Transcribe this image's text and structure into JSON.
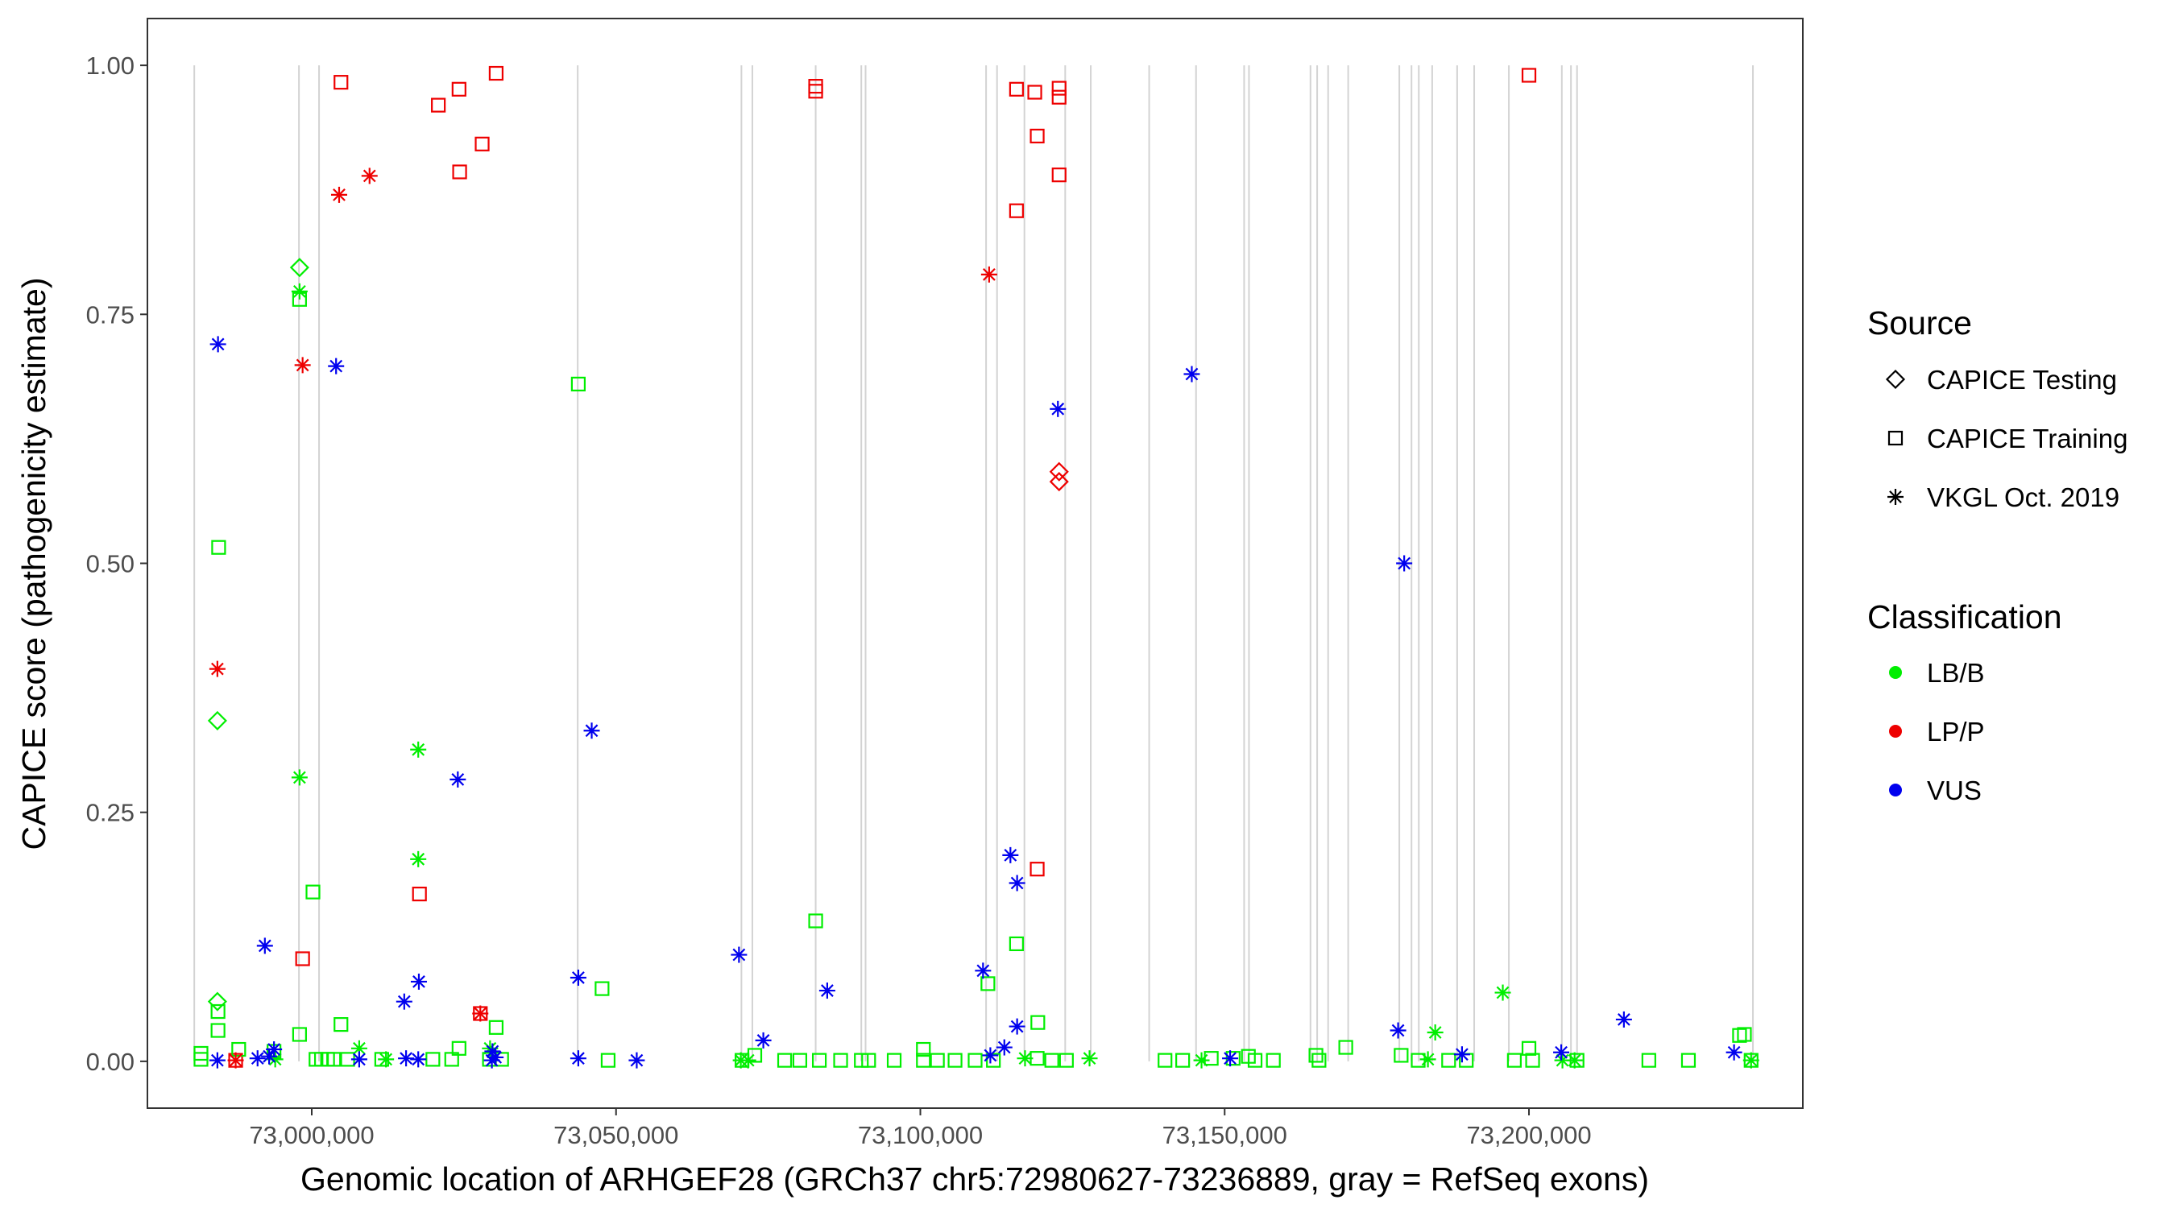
{
  "chart_data": {
    "type": "scatter",
    "xlabel": "Genomic location of ARHGEF28 (GRCh37 chr5:72980627-73236889, gray = RefSeq exons)",
    "ylabel": "CAPICE score (pathogenicity estimate)",
    "xlim": [
      72973000,
      73245000
    ],
    "ylim": [
      -0.047,
      1.047
    ],
    "x_ticks": [
      73000000,
      73050000,
      73100000,
      73150000,
      73200000
    ],
    "x_tick_labels": [
      "73,000,000",
      "73,050,000",
      "73,100,000",
      "73,150,000",
      "73,200,000"
    ],
    "y_ticks": [
      0,
      0.25,
      0.5,
      0.75,
      1
    ],
    "y_tick_labels": [
      "0.00",
      "0.25",
      "0.50",
      "0.75",
      "1.00"
    ],
    "grid": false,
    "legend_position": "right",
    "exon_color": "#d3d3d3",
    "exons": [
      72980700,
      72997900,
      73001200,
      73043700,
      73070600,
      73072400,
      73082800,
      73090300,
      73091000,
      73110800,
      73112600,
      73117100,
      73123800,
      73128000,
      73137600,
      73145300,
      73153200,
      73154000,
      73164100,
      73165200,
      73167000,
      73170300,
      73178700,
      73180700,
      73181900,
      73184100,
      73188200,
      73191000,
      73196700,
      73205400,
      73206900,
      73207900,
      73236800
    ],
    "legends": {
      "source": {
        "title": "Source",
        "items": [
          {
            "label": "CAPICE Testing",
            "shape": "diamond"
          },
          {
            "label": "CAPICE Training",
            "shape": "square"
          },
          {
            "label": "VKGL Oct. 2019",
            "shape": "asterisk"
          }
        ]
      },
      "classification": {
        "title": "Classification",
        "items": [
          {
            "label": "LB/B",
            "color": "#00ee00"
          },
          {
            "label": "LP/P",
            "color": "#ee0000"
          },
          {
            "label": "VUS",
            "color": "#0000ee"
          }
        ]
      }
    },
    "series": [
      {
        "source": "CAPICE Testing",
        "classification": "LB/B",
        "points": [
          [
            72998000,
            0.797
          ],
          [
            72984500,
            0.342
          ],
          [
            72984500,
            0.06
          ]
        ]
      },
      {
        "source": "CAPICE Testing",
        "classification": "LP/P",
        "points": [
          [
            73122800,
            0.592
          ],
          [
            73122800,
            0.582
          ]
        ]
      },
      {
        "source": "CAPICE Training",
        "classification": "LP/P",
        "points": [
          [
            73004800,
            0.983
          ],
          [
            73020800,
            0.96
          ],
          [
            73024200,
            0.976
          ],
          [
            73030300,
            0.992
          ],
          [
            73028000,
            0.921
          ],
          [
            73024300,
            0.893
          ],
          [
            72998500,
            0.103
          ],
          [
            73017700,
            0.168
          ],
          [
            73027700,
            0.048
          ],
          [
            72987500,
            0.001
          ],
          [
            73082800,
            0.979
          ],
          [
            73082800,
            0.974
          ],
          [
            73115800,
            0.976
          ],
          [
            73118800,
            0.973
          ],
          [
            73122800,
            0.977
          ],
          [
            73122800,
            0.968
          ],
          [
            73119200,
            0.929
          ],
          [
            73122800,
            0.89
          ],
          [
            73115800,
            0.854
          ],
          [
            73119200,
            0.193
          ],
          [
            73200000,
            0.99
          ]
        ]
      },
      {
        "source": "CAPICE Training",
        "classification": "LB/B",
        "points": [
          [
            72998000,
            0.765
          ],
          [
            72984700,
            0.516
          ],
          [
            73000200,
            0.17
          ],
          [
            73043800,
            0.68
          ],
          [
            73047700,
            0.073
          ],
          [
            73082800,
            0.141
          ],
          [
            73111100,
            0.078
          ],
          [
            73115800,
            0.118
          ],
          [
            73119300,
            0.039
          ],
          [
            72998000,
            0.027
          ],
          [
            73004800,
            0.037
          ],
          [
            73024200,
            0.013
          ],
          [
            73030300,
            0.034
          ],
          [
            72984600,
            0.05
          ],
          [
            72984600,
            0.031
          ],
          [
            72981800,
            0.008
          ],
          [
            72981800,
            0.002
          ],
          [
            72988000,
            0.012
          ],
          [
            72993800,
            0.01
          ],
          [
            73000700,
            0.002
          ],
          [
            73001600,
            0.002
          ],
          [
            73002600,
            0.002
          ],
          [
            73003600,
            0.002
          ],
          [
            73005900,
            0.002
          ],
          [
            73011500,
            0.002
          ],
          [
            73019900,
            0.002
          ],
          [
            73023000,
            0.002
          ],
          [
            73029200,
            0.002
          ],
          [
            73031200,
            0.002
          ],
          [
            73048700,
            0.001
          ],
          [
            73070700,
            0.001
          ],
          [
            73072800,
            0.006
          ],
          [
            73077700,
            0.001
          ],
          [
            73080200,
            0.001
          ],
          [
            73083400,
            0.001
          ],
          [
            73086900,
            0.001
          ],
          [
            73090300,
            0.001
          ],
          [
            73091500,
            0.001
          ],
          [
            73095700,
            0.001
          ],
          [
            73100500,
            0.012
          ],
          [
            73100500,
            0.001
          ],
          [
            73102800,
            0.001
          ],
          [
            73105700,
            0.001
          ],
          [
            73109000,
            0.001
          ],
          [
            73112000,
            0.001
          ],
          [
            73119200,
            0.003
          ],
          [
            73121600,
            0.001
          ],
          [
            73124000,
            0.001
          ],
          [
            73140200,
            0.001
          ],
          [
            73143100,
            0.001
          ],
          [
            73147800,
            0.003
          ],
          [
            73151400,
            0.003
          ],
          [
            73153900,
            0.005
          ],
          [
            73155000,
            0.001
          ],
          [
            73158000,
            0.001
          ],
          [
            73165000,
            0.006
          ],
          [
            73165500,
            0.001
          ],
          [
            73169900,
            0.014
          ],
          [
            73179000,
            0.006
          ],
          [
            73181800,
            0.001
          ],
          [
            73186800,
            0.001
          ],
          [
            73189700,
            0.001
          ],
          [
            73197600,
            0.001
          ],
          [
            73200000,
            0.013
          ],
          [
            73200600,
            0.001
          ],
          [
            73207900,
            0.001
          ],
          [
            73219700,
            0.001
          ],
          [
            73226200,
            0.001
          ],
          [
            73234600,
            0.026
          ],
          [
            73235400,
            0.027
          ],
          [
            73236500,
            0.001
          ]
        ]
      },
      {
        "source": "VKGL Oct. 2019",
        "classification": "LP/P",
        "points": [
          [
            73009500,
            0.889
          ],
          [
            73004500,
            0.87
          ],
          [
            72998500,
            0.699
          ],
          [
            72984500,
            0.394
          ],
          [
            73027700,
            0.048
          ],
          [
            72987500,
            0.001
          ],
          [
            73111300,
            0.79
          ]
        ]
      },
      {
        "source": "VKGL Oct. 2019",
        "classification": "LB/B",
        "points": [
          [
            72998000,
            0.773
          ],
          [
            72998000,
            0.285
          ],
          [
            73017500,
            0.313
          ],
          [
            73017500,
            0.203
          ],
          [
            73007800,
            0.013
          ],
          [
            72994000,
            0.002
          ],
          [
            73012200,
            0.002
          ],
          [
            73029300,
            0.013
          ],
          [
            73070500,
            0.001
          ],
          [
            73071700,
            0.001
          ],
          [
            73117200,
            0.003
          ],
          [
            73127800,
            0.003
          ],
          [
            73146200,
            0.001
          ],
          [
            73183400,
            0.002
          ],
          [
            73184600,
            0.029
          ],
          [
            73195700,
            0.069
          ],
          [
            73205500,
            0.001
          ],
          [
            73207500,
            0.001
          ],
          [
            73236500,
            0.001
          ]
        ]
      },
      {
        "source": "VKGL Oct. 2019",
        "classification": "VUS",
        "points": [
          [
            72984600,
            0.72
          ],
          [
            73004000,
            0.698
          ],
          [
            73046000,
            0.332
          ],
          [
            73024000,
            0.283
          ],
          [
            72992300,
            0.116
          ],
          [
            73017600,
            0.08
          ],
          [
            73015200,
            0.06
          ],
          [
            72984500,
            0.001
          ],
          [
            72991100,
            0.003
          ],
          [
            72993000,
            0.005
          ],
          [
            72993800,
            0.012
          ],
          [
            73007800,
            0.002
          ],
          [
            73015500,
            0.003
          ],
          [
            73017500,
            0.002
          ],
          [
            73029600,
            0.001
          ],
          [
            73029700,
            0.01
          ],
          [
            73030200,
            0.004
          ],
          [
            73043800,
            0.084
          ],
          [
            73043800,
            0.003
          ],
          [
            73053400,
            0.001
          ],
          [
            73070200,
            0.107
          ],
          [
            73074200,
            0.021
          ],
          [
            73084700,
            0.071
          ],
          [
            73110300,
            0.091
          ],
          [
            73111500,
            0.006
          ],
          [
            73113800,
            0.014
          ],
          [
            73114800,
            0.207
          ],
          [
            73115900,
            0.179
          ],
          [
            73115900,
            0.035
          ],
          [
            73122600,
            0.655
          ],
          [
            73144600,
            0.69
          ],
          [
            73150900,
            0.003
          ],
          [
            73179500,
            0.5
          ],
          [
            73178500,
            0.031
          ],
          [
            73189000,
            0.007
          ],
          [
            73205300,
            0.009
          ],
          [
            73215600,
            0.042
          ],
          [
            73233700,
            0.009
          ]
        ]
      }
    ]
  }
}
